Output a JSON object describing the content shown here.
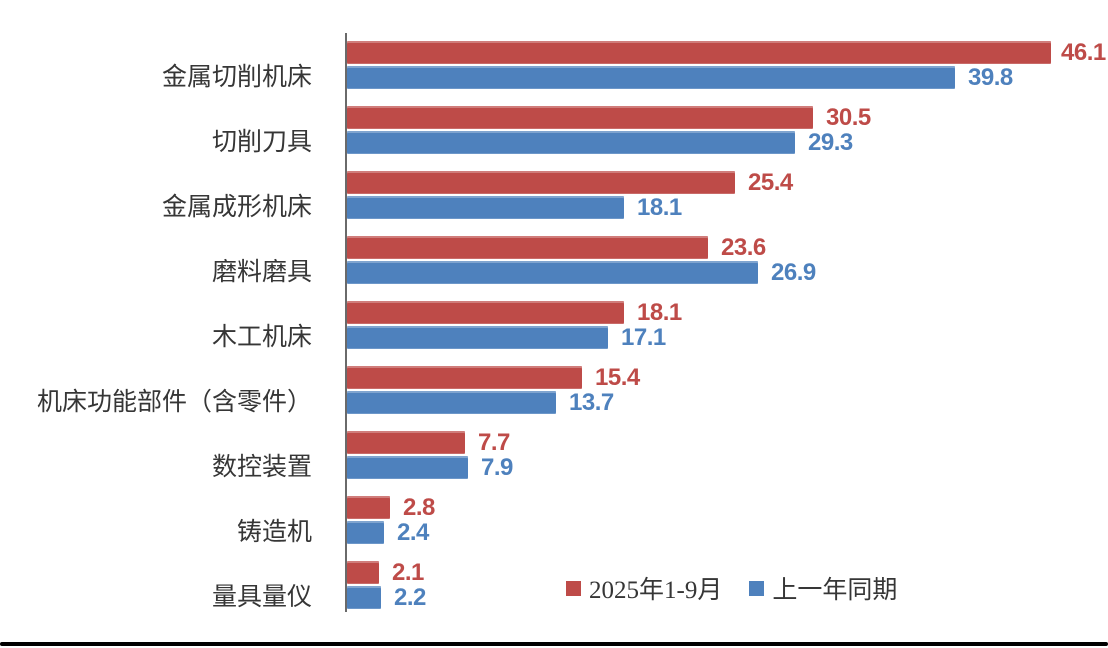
{
  "chart_data": {
    "type": "bar",
    "orientation": "horizontal",
    "title": "",
    "xlabel": "",
    "ylabel": "",
    "xlim": [
      0,
      50
    ],
    "grid": false,
    "value_labels": true,
    "legend_position": "bottom-inside",
    "categories": [
      "金属切削机床",
      "切削刀具",
      "金属成形机床",
      "磨料磨具",
      "木工机床",
      "机床功能部件（含零件）",
      "数控装置",
      "铸造机",
      "量具量仪"
    ],
    "series": [
      {
        "name": "2025年1-9月",
        "color": "#BE4B48",
        "values": [
          46.1,
          30.5,
          25.4,
          23.6,
          18.1,
          15.4,
          7.7,
          2.8,
          2.1
        ]
      },
      {
        "name": "上一年同期",
        "color": "#4E81BD",
        "values": [
          39.8,
          29.3,
          18.1,
          26.9,
          17.1,
          13.7,
          7.9,
          2.4,
          2.2
        ]
      }
    ],
    "colors": {
      "series1_red": "#BE4B48",
      "series2_blue": "#4E81BD",
      "axis_line": "#6a6a6a",
      "category_text": "#363636",
      "bottom_rule": "#000000"
    }
  }
}
